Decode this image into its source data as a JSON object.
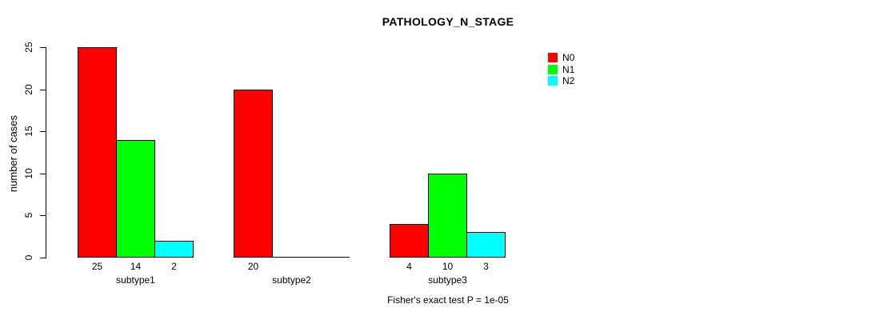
{
  "chart_data": {
    "type": "bar",
    "grouped": true,
    "title": "PATHOLOGY_N_STAGE",
    "ylabel": "number of cases",
    "xlabel": "",
    "categories": [
      "subtype1",
      "subtype2",
      "subtype3"
    ],
    "series": [
      {
        "name": "N0",
        "color": "#FF0000",
        "values": [
          25,
          20,
          4
        ]
      },
      {
        "name": "N1",
        "color": "#00FF00",
        "values": [
          14,
          0,
          10
        ]
      },
      {
        "name": "N2",
        "color": "#00FFFF",
        "values": [
          2,
          0,
          3
        ]
      }
    ],
    "bar_value_labels": [
      [
        "25",
        "14",
        "2"
      ],
      [
        "20",
        "",
        ""
      ],
      [
        "4",
        "10",
        "3"
      ]
    ],
    "yticks": [
      0,
      5,
      10,
      15,
      20,
      25
    ],
    "ylim": [
      0,
      25
    ],
    "grid": false,
    "legend": {
      "position": "top-right",
      "entries": [
        "N0",
        "N1",
        "N2"
      ]
    },
    "annotation": "Fisher's exact test P = 1e-05",
    "axis_color": "#000000",
    "background_color": "#FFFFFF"
  }
}
